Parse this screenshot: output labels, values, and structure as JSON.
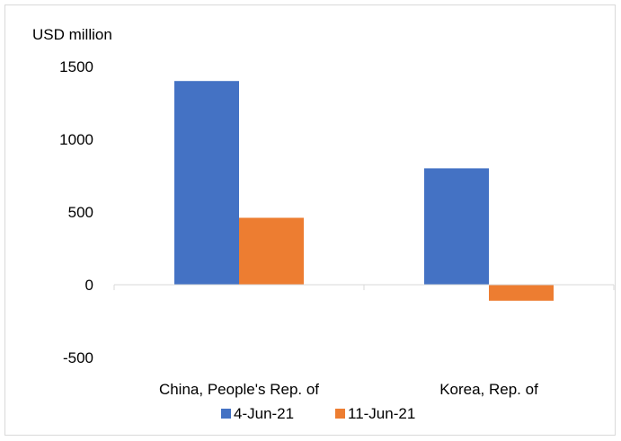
{
  "chart_data": {
    "type": "bar",
    "unit_label": "USD million",
    "categories": [
      "China, People's Rep. of",
      "Korea, Rep. of"
    ],
    "series": [
      {
        "name": "4-Jun-21",
        "color": "#4472C4",
        "values": [
          1400,
          800
        ]
      },
      {
        "name": "11-Jun-21",
        "color": "#ED7D31",
        "values": [
          460,
          -110
        ]
      }
    ],
    "ylim": [
      -500,
      1500
    ],
    "yticks": [
      1500,
      1000,
      500,
      0,
      -500
    ],
    "grid": false,
    "legend_position": "bottom"
  }
}
